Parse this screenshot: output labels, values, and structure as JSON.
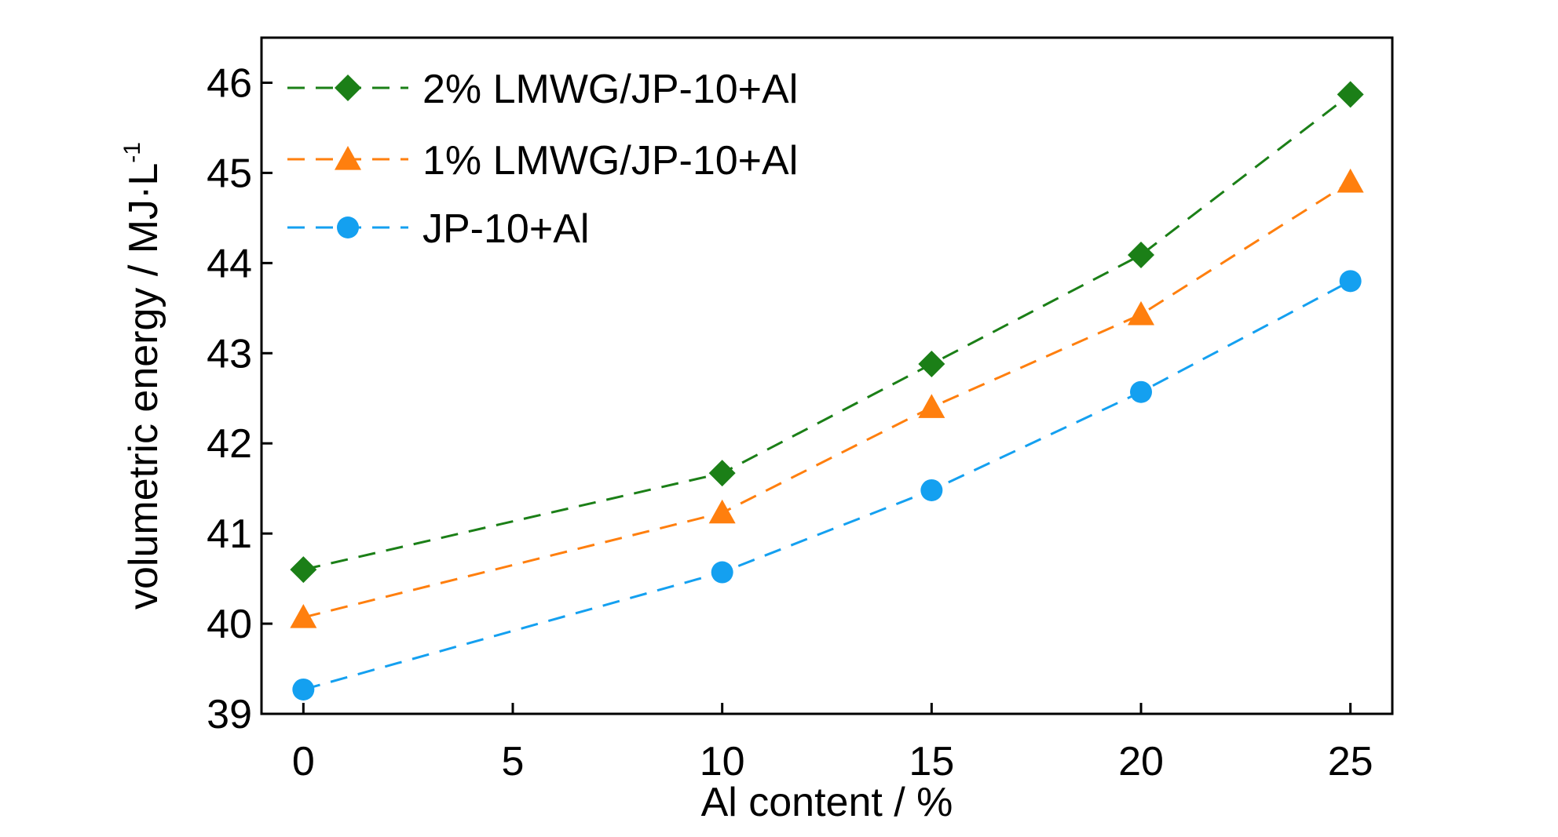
{
  "chart_data": {
    "type": "line",
    "xlabel": "Al content / %",
    "ylabel": "volumetric energy / MJ·L",
    "ylabel_superscript": "-1",
    "xlim": [
      -1,
      26
    ],
    "ylim": [
      39,
      46.5
    ],
    "xticks": [
      0,
      5,
      10,
      15,
      20,
      25
    ],
    "yticks": [
      39,
      40,
      41,
      42,
      43,
      44,
      45,
      46
    ],
    "grid": false,
    "legend_position": "top-left",
    "series": [
      {
        "name": "2% LMWG/JP-10+Al",
        "marker": "diamond",
        "color": "#1b7f17",
        "x": [
          0,
          10,
          15,
          20,
          25
        ],
        "y": [
          40.6,
          41.67,
          42.88,
          44.09,
          45.87
        ]
      },
      {
        "name": "1% LMWG/JP-10+Al",
        "marker": "triangle",
        "color": "#ff7f0e",
        "x": [
          0,
          10,
          15,
          20,
          25
        ],
        "y": [
          40.07,
          41.23,
          42.4,
          43.43,
          44.9
        ]
      },
      {
        "name": "JP-10+Al",
        "marker": "circle",
        "color": "#14a0f0",
        "x": [
          0,
          10,
          15,
          20,
          25
        ],
        "y": [
          39.27,
          40.57,
          41.48,
          42.57,
          43.8
        ]
      }
    ]
  }
}
